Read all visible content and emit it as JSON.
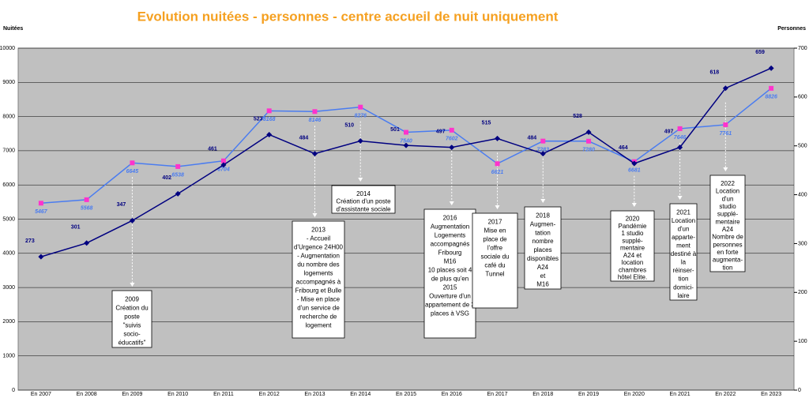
{
  "chart_data": {
    "type": "line",
    "title": "Evolution nuitées - personnes - centre accueil de nuit uniquement",
    "y_label": "Nuitées",
    "y2_label": "Personnes",
    "categories": [
      "En 2007",
      "En 2008",
      "En 2009",
      "En 2010",
      "En 2011",
      "En 2012",
      "En 2013",
      "En 2014",
      "En 2015",
      "En 2016",
      "En 2017",
      "En 2018",
      "En 2019",
      "En 2020",
      "En 2021",
      "En 2022",
      "En 2023"
    ],
    "ylim": [
      0,
      10000
    ],
    "yticks": [
      0,
      1000,
      2000,
      3000,
      4000,
      5000,
      6000,
      7000,
      8000,
      9000,
      10000
    ],
    "y2lim": [
      0,
      700
    ],
    "y2ticks": [
      0,
      100,
      200,
      300,
      400,
      500,
      600,
      700
    ],
    "grid": true,
    "series": [
      {
        "name": "Nuitées",
        "color": "#4a7cf0",
        "marker_color": "#ff33cc",
        "axis": "y",
        "values": [
          5467,
          5568,
          6645,
          6538,
          6704,
          8168,
          8146,
          8276,
          7540,
          7602,
          6621,
          7283,
          7280,
          6681,
          7646,
          7761,
          8826
        ]
      },
      {
        "name": "Personnes",
        "color": "#000080",
        "marker_color": "#000080",
        "axis": "y2",
        "values": [
          273,
          301,
          347,
          402,
          461,
          523,
          484,
          510,
          501,
          497,
          515,
          484,
          528,
          464,
          497,
          618,
          659
        ]
      }
    ],
    "annotations": [
      [
        "2009",
        "Création du",
        "poste",
        "\"suivis",
        "socio-",
        "éducatifs\""
      ],
      [
        "2013",
        "- Accueil",
        "d'Urgence 24H00",
        "- Augmentation",
        "du nombre des",
        "logements",
        "accompagnés à",
        "Fribourg et Bulle",
        "- Mise en place",
        "d'un service de",
        "recherche de",
        "logement"
      ],
      [
        "2014",
        "Création d'un poste",
        "d'assistante sociale"
      ],
      [
        "2016",
        "Augmentation",
        "Logements",
        "accompagnés",
        "Fribourg",
        "M16",
        "10 places soit 4",
        "de plus qu'en",
        "2015",
        "Ouverture d'un",
        "appartement de 3",
        "places à VSG"
      ],
      [
        "2017",
        "Mise en",
        "place de",
        "l'offre",
        "sociale du",
        "café du",
        "Tunnel"
      ],
      [
        "2018",
        "Augmen-",
        "tation",
        "nombre",
        "places",
        "disponibles",
        "A24",
        "et",
        "M16"
      ],
      [
        "2020",
        "Pandémie",
        "1 studio",
        "supplé-",
        "mentaire",
        "A24 et",
        "location",
        "chambres",
        "hôtel Elite."
      ],
      [
        "2021",
        "Location",
        "d'un",
        "apparte-",
        "ment",
        "destiné à",
        "la",
        "réinser-",
        "tion",
        "domici-",
        "laire"
      ],
      [
        "2022",
        "Location",
        "d'un",
        "studio",
        "supplé-",
        "mentaire",
        "A24",
        "Nombre de",
        "personnes",
        "en forte",
        "augmenta-",
        "tion"
      ]
    ]
  }
}
